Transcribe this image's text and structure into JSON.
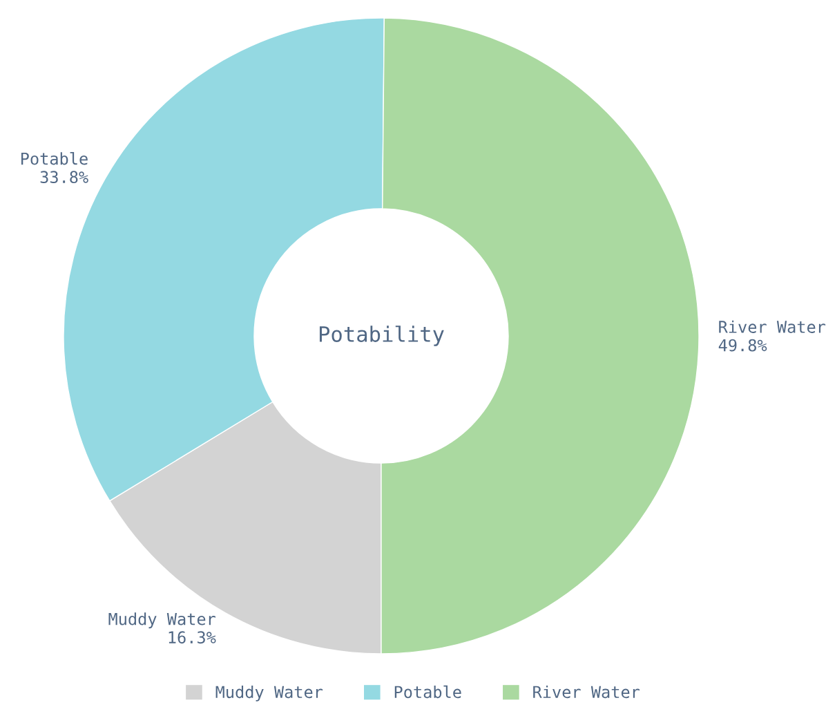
{
  "chart_data": {
    "type": "donut",
    "title": "Potability",
    "categories": [
      "Muddy Water",
      "Potable",
      "River Water"
    ],
    "values": [
      16.3,
      33.8,
      49.8
    ],
    "colors": [
      "#d3d3d3",
      "#94d9e2",
      "#aad9a0"
    ],
    "value_labels": [
      "16.3%",
      "33.8%",
      "49.8%"
    ],
    "legend": "bottom"
  }
}
